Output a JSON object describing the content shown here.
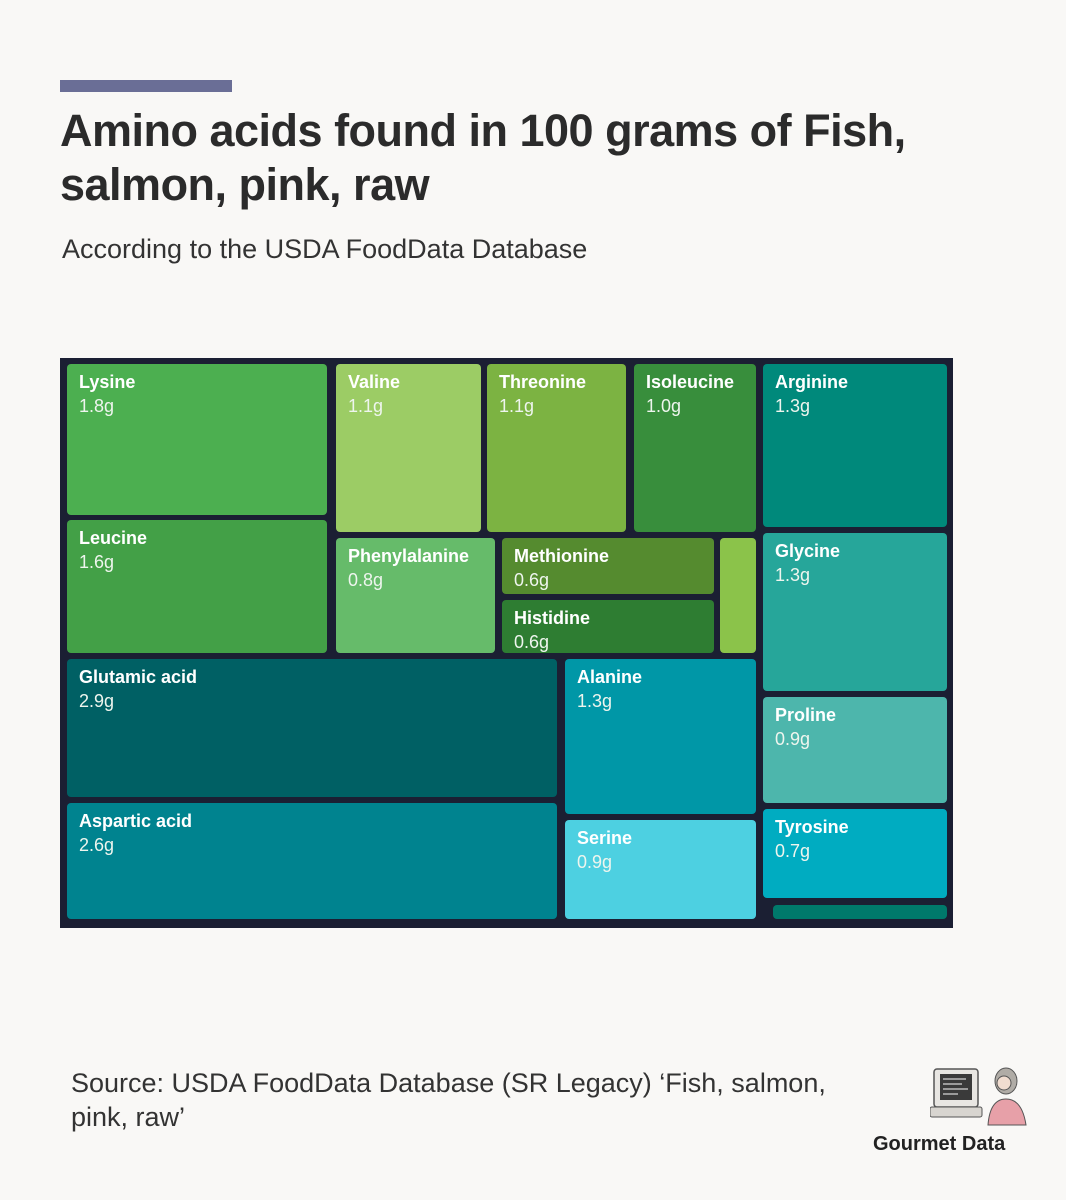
{
  "header": {
    "title": "Amino acids found in 100 grams of Fish, salmon, pink, raw",
    "subtitle": "According to the USDA FoodData Database"
  },
  "chart_data": {
    "type": "treemap",
    "title": "Amino acids found in 100 grams of Fish, salmon, pink, raw",
    "subtitle": "According to the USDA FoodData Database",
    "unit": "g",
    "items": [
      {
        "name": "Lysine",
        "value": 1.8,
        "label": "1.8g",
        "color": "#4caf50"
      },
      {
        "name": "Leucine",
        "value": 1.6,
        "label": "1.6g",
        "color": "#43a047"
      },
      {
        "name": "Valine",
        "value": 1.1,
        "label": "1.1g",
        "color": "#9ccc65"
      },
      {
        "name": "Threonine",
        "value": 1.1,
        "label": "1.1g",
        "color": "#7cb342"
      },
      {
        "name": "Isoleucine",
        "value": 1.0,
        "label": "1.0g",
        "color": "#388e3c"
      },
      {
        "name": "Phenylalanine",
        "value": 0.8,
        "label": "0.8g",
        "color": "#66bb6a"
      },
      {
        "name": "Methionine",
        "value": 0.6,
        "label": "0.6g",
        "color": "#558b2f"
      },
      {
        "name": "Histidine",
        "value": 0.6,
        "label": "0.6g",
        "color": "#2e7d32"
      },
      {
        "name": "Arginine",
        "value": 1.3,
        "label": "1.3g",
        "color": "#00897b"
      },
      {
        "name": "Glycine",
        "value": 1.3,
        "label": "1.3g",
        "color": "#26a69a"
      },
      {
        "name": "Proline",
        "value": 0.9,
        "label": "0.9g",
        "color": "#4db6ac"
      },
      {
        "name": "Tyrosine",
        "value": 0.7,
        "label": "0.7g",
        "color": "#00acc1"
      },
      {
        "name": "Glutamic acid",
        "value": 2.9,
        "label": "2.9g",
        "color": "#006064"
      },
      {
        "name": "Aspartic acid",
        "value": 2.6,
        "label": "2.6g",
        "color": "#00838f"
      },
      {
        "name": "Alanine",
        "value": 1.3,
        "label": "1.3g",
        "color": "#0097a7"
      },
      {
        "name": "Serine",
        "value": 0.9,
        "label": "0.9g",
        "color": "#4dd0e1"
      }
    ],
    "unlabeled_small_tiles": [
      {
        "value": 0.2,
        "color": "#8bc34a"
      },
      {
        "value": 0.2,
        "color": "#00796b"
      }
    ]
  },
  "footer": {
    "source": "Source: USDA FoodData Database (SR Legacy)  ‘Fish, salmon, pink, raw’",
    "brand": "Gourmet Data"
  }
}
